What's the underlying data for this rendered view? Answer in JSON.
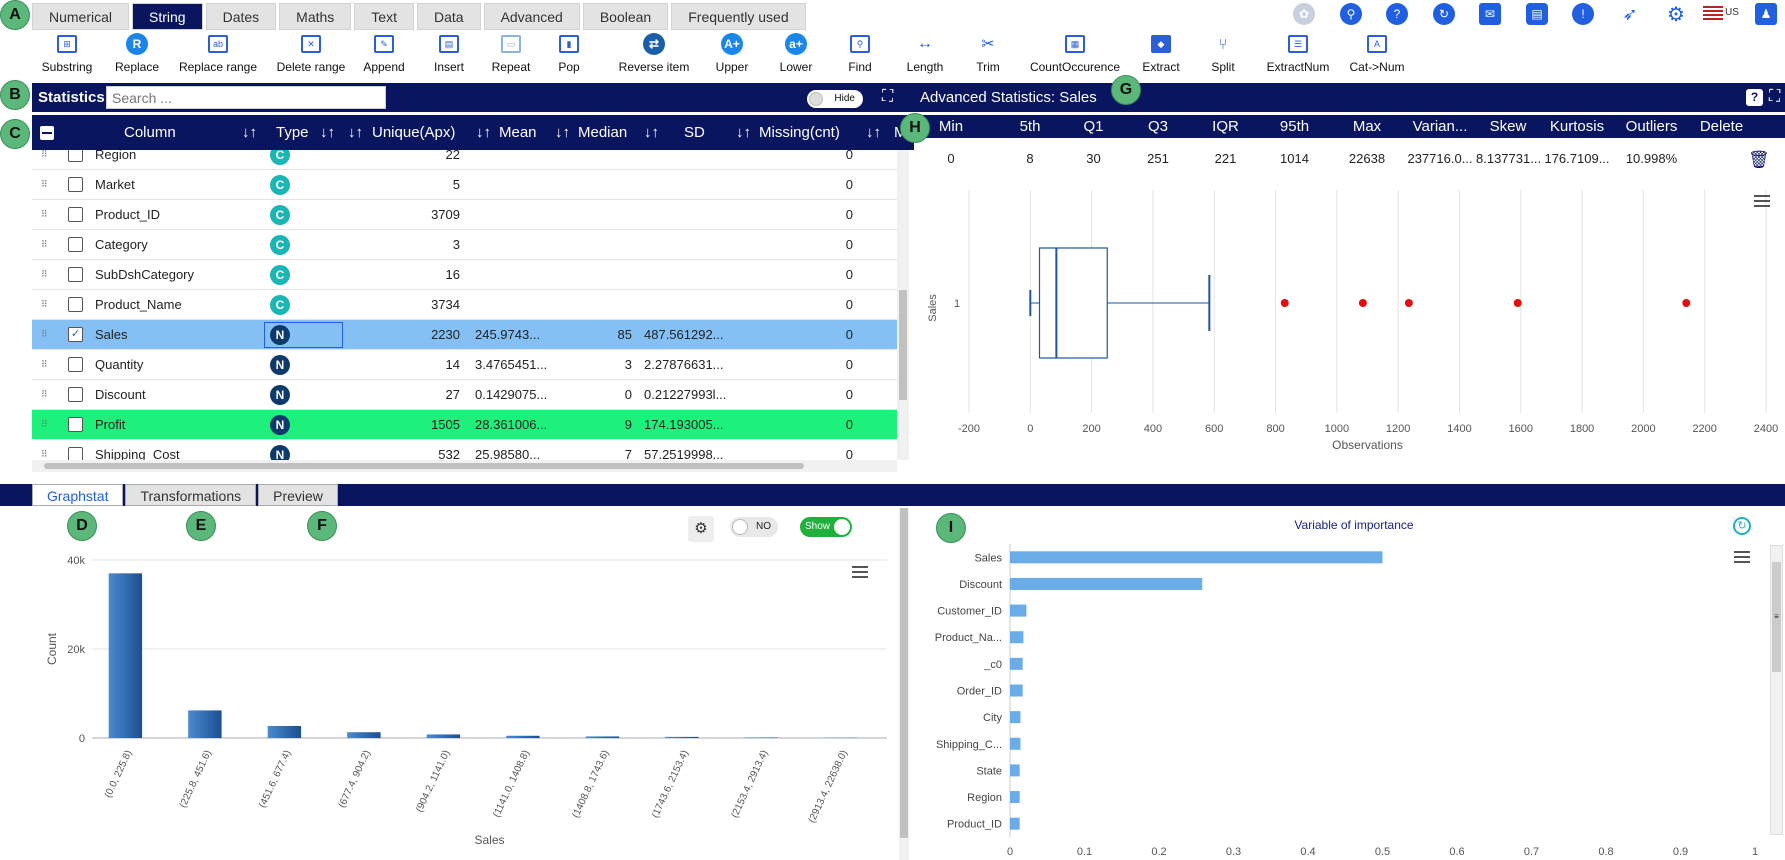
{
  "markers": [
    "A",
    "B",
    "C",
    "D",
    "E",
    "F",
    "G",
    "H",
    "I"
  ],
  "top_tabs": [
    "Numerical",
    "String",
    "Dates",
    "Maths",
    "Text",
    "Data",
    "Advanced",
    "Boolean",
    "Frequently used"
  ],
  "header_icons": [
    "brain-icon",
    "search-icon",
    "help-icon",
    "refresh-icon",
    "mail-icon",
    "chat-icon",
    "alert-icon",
    "rocket-icon",
    "gear-icon",
    "flag-icon",
    "user-icon"
  ],
  "locale": "US",
  "toolbar": [
    "Substring",
    "Replace",
    "Replace range",
    "Delete range",
    "Append",
    "Insert",
    "Repeat",
    "Pop",
    "Reverse item",
    "Upper",
    "Lower",
    "Find",
    "Length",
    "Trim",
    "CountOccurence",
    "Extract",
    "Split",
    "ExtractNum",
    "Cat->Num"
  ],
  "statistics": {
    "title": "Statistics",
    "search_placeholder": "Search ...",
    "hide_label": "Hide",
    "columns": [
      "Column",
      "Type",
      "Unique(Apx)",
      "Mean",
      "Median",
      "SD",
      "Missing(cnt)",
      "M"
    ],
    "rows": [
      {
        "name": "Region",
        "type": "C",
        "unique": "22",
        "mean": "",
        "median": "",
        "sd": "",
        "missing": "0",
        "checked": false,
        "state": ""
      },
      {
        "name": "Market",
        "type": "C",
        "unique": "5",
        "mean": "",
        "median": "",
        "sd": "",
        "missing": "0",
        "checked": false,
        "state": ""
      },
      {
        "name": "Product_ID",
        "type": "C",
        "unique": "3709",
        "mean": "",
        "median": "",
        "sd": "",
        "missing": "0",
        "checked": false,
        "state": ""
      },
      {
        "name": "Category",
        "type": "C",
        "unique": "3",
        "mean": "",
        "median": "",
        "sd": "",
        "missing": "0",
        "checked": false,
        "state": ""
      },
      {
        "name": "SubDshCategory",
        "type": "C",
        "unique": "16",
        "mean": "",
        "median": "",
        "sd": "",
        "missing": "0",
        "checked": false,
        "state": ""
      },
      {
        "name": "Product_Name",
        "type": "C",
        "unique": "3734",
        "mean": "",
        "median": "",
        "sd": "",
        "missing": "0",
        "checked": false,
        "state": ""
      },
      {
        "name": "Sales",
        "type": "N",
        "unique": "2230",
        "mean": "245.9743...",
        "median": "85",
        "sd": "487.561292...",
        "missing": "0",
        "checked": true,
        "state": "sel"
      },
      {
        "name": "Quantity",
        "type": "N",
        "unique": "14",
        "mean": "3.4765451...",
        "median": "3",
        "sd": "2.27876631...",
        "missing": "0",
        "checked": false,
        "state": ""
      },
      {
        "name": "Discount",
        "type": "N",
        "unique": "27",
        "mean": "0.1429075...",
        "median": "0",
        "sd": "0.21227993l...",
        "missing": "0",
        "checked": false,
        "state": ""
      },
      {
        "name": "Profit",
        "type": "N",
        "unique": "1505",
        "mean": "28.361006...",
        "median": "9",
        "sd": "174.193005...",
        "missing": "0",
        "checked": false,
        "state": "hl"
      },
      {
        "name": "Shipping_Cost",
        "type": "N",
        "unique": "532",
        "mean": "25.98580...",
        "median": "7",
        "sd": "57.2519998...",
        "missing": "0",
        "checked": false,
        "state": ""
      }
    ]
  },
  "advanced": {
    "title": "Advanced Statistics: Sales",
    "headers": [
      "Min",
      "5th",
      "Q1",
      "Q3",
      "IQR",
      "95th",
      "Max",
      "Varian...",
      "Skew",
      "Kurtosis",
      "Outliers",
      "Delete"
    ],
    "values": [
      "0",
      "8",
      "30",
      "251",
      "221",
      "1014",
      "22638",
      "237716.0...",
      "8.137731...",
      "176.7109...",
      "10.998%"
    ]
  },
  "bottom_tabs": [
    "Graphstat",
    "Transformations",
    "Preview"
  ],
  "toggles": {
    "no_label": "NO",
    "show_label": "Show"
  },
  "colors": {
    "navy": "#0a1560",
    "accent": "#1f5fe0",
    "selected_row": "#85c0f5",
    "highlight_row": "#1ef07c",
    "bar": "#2b6bb4",
    "importance_bar": "#6aace8",
    "outlier": "#e01010"
  },
  "chart_data": [
    {
      "type": "box",
      "title": "",
      "category_label": "1",
      "ylabel": "Sales",
      "xlabel": "Observations",
      "xlim": [
        -200,
        2400
      ],
      "xticks": [
        -200,
        0,
        200,
        400,
        600,
        800,
        1000,
        1200,
        1400,
        1600,
        1800,
        2000,
        2200,
        2400
      ],
      "whisker_low": 0,
      "q1": 30,
      "median": 85,
      "q3": 251,
      "whisker_high": 584,
      "outliers": [
        830,
        1085,
        1235,
        1590,
        2140
      ]
    },
    {
      "type": "bar",
      "xlabel": "Sales",
      "ylabel": "Count",
      "categories": [
        "(0.0, 225.8)",
        "(225.8, 451.6)",
        "(451.6, 677.4)",
        "(677.4, 904.2)",
        "(904.2, 1141.0)",
        "(1141.0, 1408.8)",
        "(1408.8, 1743.6)",
        "(1743.6, 2153.4)",
        "(2153.4, 2913.4)",
        "(2913.4, 22638.0)"
      ],
      "values": [
        37000,
        6200,
        2700,
        1300,
        800,
        500,
        350,
        250,
        120,
        60
      ],
      "ylim": [
        0,
        40000
      ],
      "yticks": [
        "0",
        "20k",
        "40k"
      ]
    },
    {
      "type": "bar",
      "orientation": "horizontal",
      "title": "Variable of importance",
      "categories": [
        "Sales",
        "Discount",
        "Customer_ID",
        "Product_Na...",
        "_c0",
        "Order_ID",
        "City",
        "Shipping_C...",
        "State",
        "Region",
        "Product_ID"
      ],
      "values": [
        0.5,
        0.258,
        0.022,
        0.018,
        0.017,
        0.017,
        0.014,
        0.014,
        0.013,
        0.013,
        0.013
      ],
      "xlim": [
        0,
        1
      ],
      "xticks": [
        "0",
        "0.1",
        "0.2",
        "0.3",
        "0.4",
        "0.5",
        "0.6",
        "0.7",
        "0.8",
        "0.9",
        "1"
      ]
    }
  ]
}
